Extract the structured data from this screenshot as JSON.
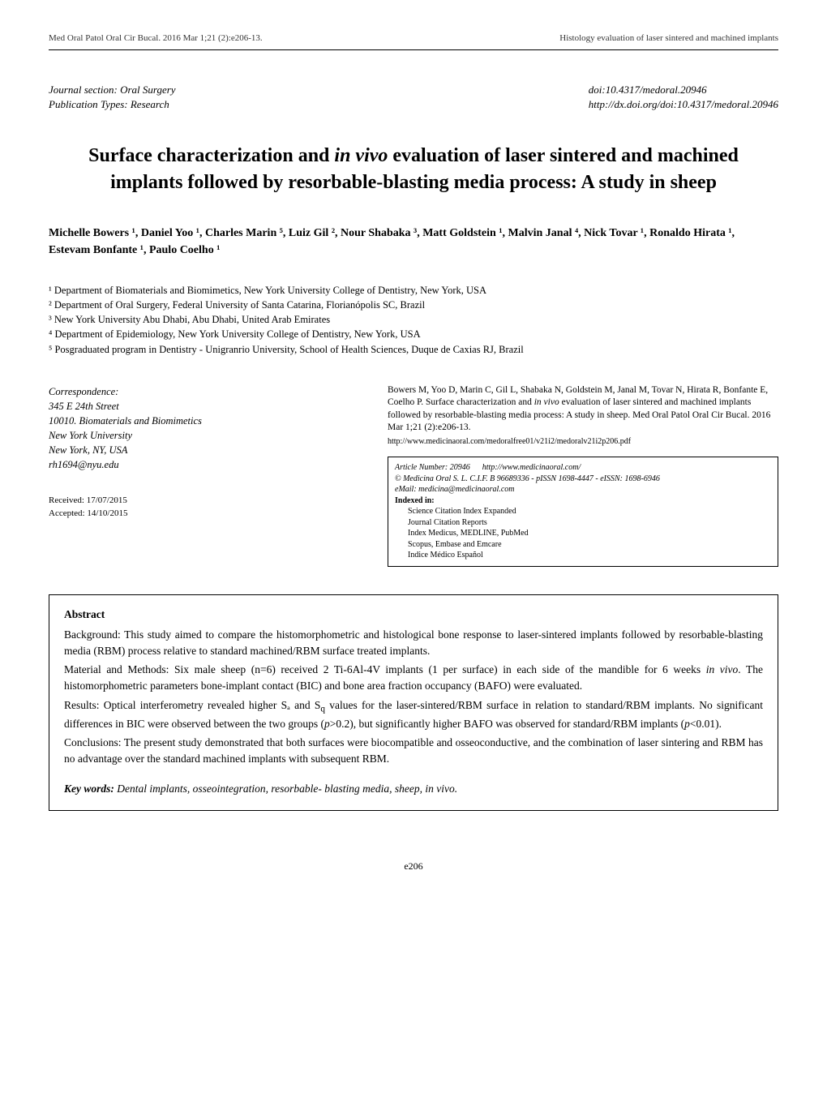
{
  "header": {
    "left": "Med Oral Patol Oral Cir Bucal. 2016 Mar 1;21 (2):e206-13.",
    "right": "Histology evaluation of laser sintered and machined implants"
  },
  "meta": {
    "left_line1": "Journal section: Oral Surgery",
    "left_line2": "Publication Types: Research",
    "right_line1": "doi:10.4317/medoral.20946",
    "right_line2": "http://dx.doi.org/doi:10.4317/medoral.20946"
  },
  "title_line1": "Surface characterization and ",
  "title_italic": "in vivo",
  "title_line1b": " evaluation of laser sintered and machined",
  "title_line2": "implants followed by resorbable-blasting media process: A study in sheep",
  "authors_html": "Michelle Bowers ¹, Daniel Yoo ¹, Charles Marin ⁵, Luiz Gil ², Nour Shabaka ³, Matt Goldstein ¹, Malvin Janal ⁴, Nick Tovar ¹, Ronaldo Hirata ¹, Estevam Bonfante ¹, Paulo Coelho ¹",
  "affiliations": {
    "a1": "¹ Department of Biomaterials and Biomimetics, New York University College of Dentistry, New York, USA",
    "a2": "² Department of Oral Surgery, Federal University of Santa Catarina, Florianópolis SC, Brazil",
    "a3": "³ New York University Abu Dhabi, Abu Dhabi, United Arab Emirates",
    "a4": "⁴ Department of Epidemiology, New York University College of Dentistry, New York, USA",
    "a5": "⁵ Posgraduated program in Dentistry - Unigranrio University, School of Health Sciences, Duque de Caxias  RJ, Brazil"
  },
  "correspondence": {
    "heading": "Correspondence:",
    "l1": "345 E 24th Street",
    "l2": "10010. Biomaterials and Biomimetics",
    "l3": "New York University",
    "l4": "New York, NY, USA",
    "l5": "rh1694@nyu.edu"
  },
  "received": {
    "l1": "Received: 17/07/2015",
    "l2": "Accepted: 14/10/2015"
  },
  "citation": {
    "text1": "Bowers M, Yoo D, Marin C, Gil L, Shabaka N, Goldstein M, Janal M, Tovar N, Hirata R, Bonfante E, Coelho P. Surface characterization and ",
    "italic": "in vivo",
    "text2": " evaluation of laser sintered and machined implants followed by resorbable-blasting media process: A study in sheep. Med Oral Patol Oral Cir Bucal. 2016 Mar 1;21 (2):e206-13.",
    "url": "http://www.medicinaoral.com/medoralfree01/v21i2/medoralv21i2p206.pdf"
  },
  "article_box": {
    "l1a": "Article Number: 20946",
    "l1b": "http://www.medicinaoral.com/",
    "l2": "© Medicina Oral S. L. C.I.F. B 96689336 - pISSN 1698-4447 - eISSN: 1698-6946",
    "l3": "eMail:  medicina@medicinaoral.com",
    "l4": "Indexed in:",
    "i1": "Science Citation Index Expanded",
    "i2": "Journal Citation Reports",
    "i3": "Index Medicus, MEDLINE, PubMed",
    "i4": "Scopus, Embase and Emcare",
    "i5": "Indice Médico Español"
  },
  "abstract": {
    "heading": "Abstract",
    "p1": "Background: This study aimed to compare the histomorphometric and histological bone response to laser-sintered implants followed by resorbable-blasting media (RBM) process relative to standard machined/RBM surface treated implants.",
    "p2a": "Material and Methods: Six male sheep (n=6) received 2 Ti-6Al-4V implants (1 per surface) in each side of the mandible for 6 weeks ",
    "p2_italic": "in vivo",
    "p2b": ". The histomorphometric parameters bone-implant contact (BIC) and bone area fraction occupancy (BAFO) were evaluated.",
    "p3a": "Results: Optical interferometry revealed higher Sₐ and S",
    "p3_sub": "q",
    "p3b": " values for the laser-sintered/RBM surface in relation to standard/RBM implants. No significant differences in BIC were observed between the two groups (",
    "p3_ital1": "p",
    "p3c": ">0.2), but significantly higher BAFO was observed for standard/RBM implants (",
    "p3_ital2": "p",
    "p3d": "<0.01).",
    "p4": "Conclusions: The present study demonstrated that both surfaces were biocompatible and osseoconductive, and the combination of laser sintering and RBM has no advantage over the standard machined implants with subsequent RBM.",
    "kw_label": "Key words:",
    "kw_text": " Dental implants, osseointegration, resorbable- blasting media, sheep, in vivo."
  },
  "page_number": "e206"
}
